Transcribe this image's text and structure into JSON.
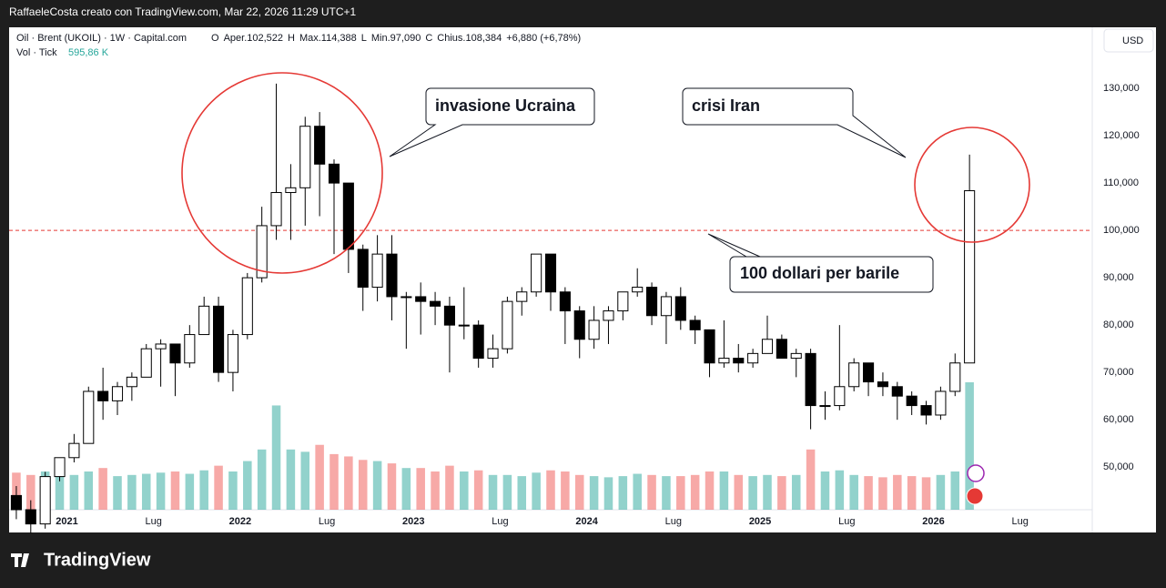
{
  "top_bar": "RaffaeleCosta creato con TradingView.com, Mar 22, 2026 11:29 UTC+1",
  "header": {
    "symbol": "Oil · Brent (UKOIL) · 1W · Capital.com",
    "ohlc": [
      "O",
      "Aper.102,522",
      "H",
      "Max.114,388",
      "L",
      "Min.97,090",
      "C",
      "Chius.108,384",
      "+6,880 (+6,78%)"
    ],
    "volume_label": "Vol · Tick",
    "volume_value": "595,86 K"
  },
  "currency_button": "USD",
  "brand": "TradingView",
  "chart_data": {
    "type": "candlestick",
    "x": [
      "2020-09",
      "2020-10",
      "2020-11",
      "2020-12",
      "2021-01",
      "2021-02",
      "2021-03",
      "2021-04",
      "2021-05",
      "2021-06",
      "2021-07",
      "2021-08",
      "2021-09",
      "2021-10",
      "2021-11",
      "2021-12",
      "2022-01",
      "2022-02",
      "2022-03",
      "2022-04",
      "2022-05",
      "2022-06",
      "2022-07",
      "2022-08",
      "2022-09",
      "2022-10",
      "2022-11",
      "2022-12",
      "2023-01",
      "2023-02",
      "2023-03",
      "2023-04",
      "2023-05",
      "2023-06",
      "2023-07",
      "2023-08",
      "2023-09",
      "2023-10",
      "2023-11",
      "2023-12",
      "2024-01",
      "2024-02",
      "2024-03",
      "2024-04",
      "2024-05",
      "2024-06",
      "2024-07",
      "2024-08",
      "2024-09",
      "2024-10",
      "2024-11",
      "2024-12",
      "2025-01",
      "2025-02",
      "2025-03",
      "2025-04",
      "2025-05",
      "2025-06",
      "2025-07",
      "2025-08",
      "2025-09",
      "2025-10",
      "2025-11",
      "2025-12",
      "2026-01",
      "2026-02",
      "2026-03"
    ],
    "open": [
      44,
      41,
      38,
      48,
      52,
      55,
      66,
      64,
      67,
      69,
      75,
      76,
      72,
      78,
      84,
      70,
      78,
      90,
      101,
      108,
      109,
      122,
      114,
      110,
      96,
      88,
      95,
      86,
      86,
      85,
      84,
      80,
      80,
      73,
      75,
      85,
      87,
      95,
      87,
      83,
      77,
      81,
      83,
      87,
      88,
      82,
      86,
      81,
      79,
      72,
      73,
      72,
      74,
      77,
      73,
      74,
      63,
      63,
      67,
      72,
      68,
      67,
      65,
      63,
      61,
      66,
      72
    ],
    "high": [
      46,
      43,
      49,
      52,
      57,
      67,
      71,
      68,
      70,
      76,
      77,
      76,
      80,
      86,
      86,
      79,
      91,
      105,
      131,
      114,
      124,
      125,
      115,
      110,
      97,
      99,
      99,
      87,
      89,
      87,
      86,
      88,
      81,
      78,
      86,
      88,
      95,
      95,
      88,
      84,
      84,
      84,
      87,
      92,
      89,
      87,
      88,
      82,
      79,
      81,
      76,
      75,
      82,
      78,
      75,
      75,
      66,
      80,
      73,
      72,
      70,
      68,
      66,
      64,
      67,
      74,
      116
    ],
    "low": [
      39,
      36,
      37,
      47,
      51,
      55,
      60,
      61,
      64,
      69,
      67,
      65,
      71,
      78,
      68,
      66,
      77,
      89,
      98,
      98,
      101,
      103,
      95,
      91,
      83,
      85,
      81,
      75,
      78,
      80,
      70,
      77,
      71,
      71,
      74,
      82,
      86,
      83,
      76,
      73,
      75,
      76,
      81,
      86,
      80,
      76,
      79,
      76,
      69,
      71,
      70,
      71,
      74,
      73,
      69,
      58,
      60,
      62,
      66,
      65,
      65,
      60,
      61,
      59,
      60,
      65,
      72
    ],
    "close": [
      41,
      38,
      48,
      52,
      55,
      66,
      64,
      67,
      69,
      75,
      76,
      72,
      78,
      84,
      70,
      78,
      90,
      101,
      108,
      109,
      122,
      114,
      110,
      96,
      88,
      95,
      86,
      86,
      85,
      84,
      80,
      80,
      73,
      75,
      85,
      87,
      95,
      87,
      83,
      77,
      81,
      83,
      87,
      88,
      82,
      86,
      81,
      79,
      72,
      73,
      72,
      74,
      77,
      73,
      74,
      63,
      63,
      67,
      72,
      68,
      67,
      65,
      63,
      61,
      66,
      72,
      108.384
    ],
    "volume": [
      320,
      300,
      330,
      310,
      300,
      330,
      360,
      290,
      300,
      310,
      320,
      330,
      310,
      340,
      380,
      330,
      420,
      520,
      900,
      520,
      500,
      560,
      480,
      460,
      430,
      420,
      400,
      360,
      360,
      330,
      380,
      330,
      340,
      300,
      300,
      290,
      320,
      340,
      330,
      300,
      290,
      280,
      290,
      310,
      300,
      290,
      290,
      300,
      330,
      330,
      300,
      290,
      300,
      290,
      300,
      520,
      330,
      340,
      300,
      290,
      280,
      300,
      290,
      280,
      300,
      330,
      1100
    ],
    "up_color": "#26a69a",
    "down_color": "#ef5350",
    "candle_color": "#000000",
    "xlim": [
      "2020-09",
      "2026-11"
    ],
    "xticks": [
      {
        "value": "2021-01",
        "label": "2021"
      },
      {
        "value": "2021-07",
        "label": "Lug"
      },
      {
        "value": "2022-01",
        "label": "2022"
      },
      {
        "value": "2022-07",
        "label": "Lug"
      },
      {
        "value": "2023-01",
        "label": "2023"
      },
      {
        "value": "2023-07",
        "label": "Lug"
      },
      {
        "value": "2024-01",
        "label": "2024"
      },
      {
        "value": "2024-07",
        "label": "Lug"
      },
      {
        "value": "2025-01",
        "label": "2025"
      },
      {
        "value": "2025-07",
        "label": "Lug"
      },
      {
        "value": "2026-01",
        "label": "2026"
      },
      {
        "value": "2026-07",
        "label": "Lug"
      }
    ],
    "ylim": [
      41,
      142.9
    ],
    "yticks": [
      {
        "value": 50,
        "label": "50,000"
      },
      {
        "value": 60,
        "label": "60,000"
      },
      {
        "value": 70,
        "label": "70,000"
      },
      {
        "value": 80,
        "label": "80,000"
      },
      {
        "value": 90,
        "label": "90,000"
      },
      {
        "value": 100,
        "label": "100,000"
      },
      {
        "value": 110,
        "label": "110,000"
      },
      {
        "value": 120,
        "label": "120,000"
      },
      {
        "value": 130,
        "label": "130,000"
      }
    ],
    "hline": 100,
    "hline_color": "#e53935",
    "annotations": [
      "invasione Ucraina",
      "crisi Iran",
      "100 dollari per barile"
    ]
  }
}
